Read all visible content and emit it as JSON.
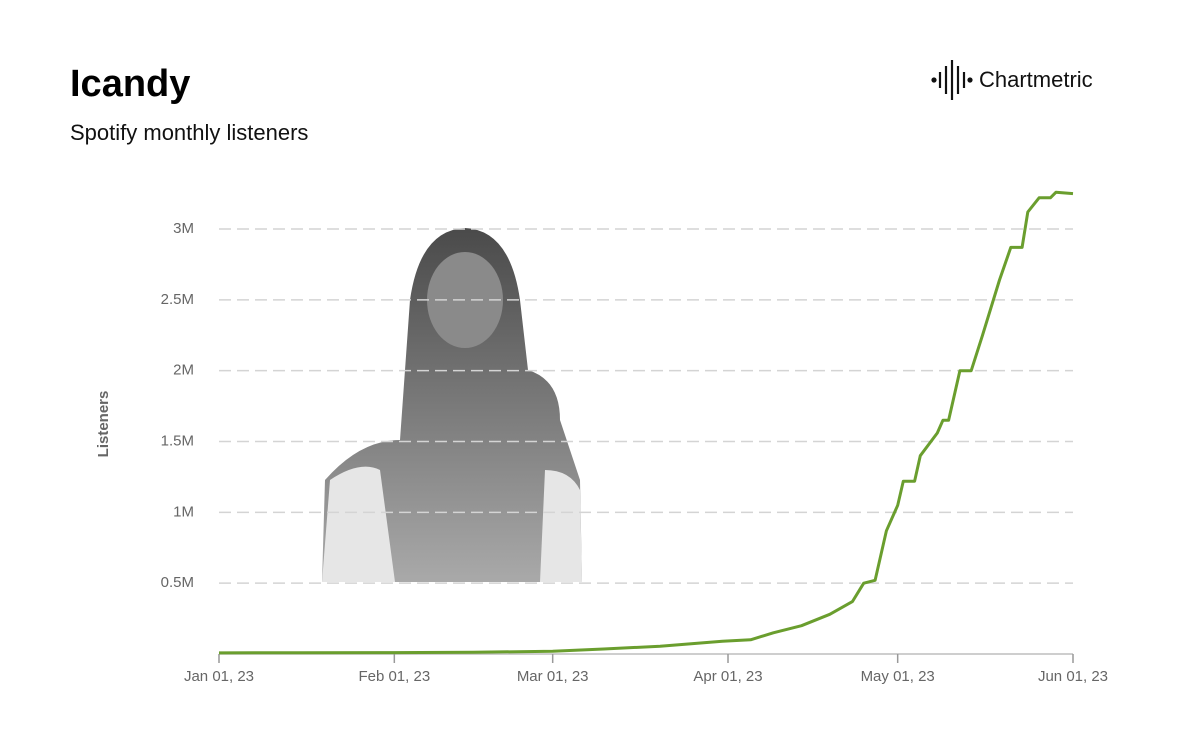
{
  "chart_data": {
    "type": "line",
    "title": "Icandy",
    "subtitle": "Spotify monthly listeners",
    "brand": "Chartmetric",
    "y_label": "Listeners",
    "grid": true,
    "x": [
      "2023-01-01",
      "2023-01-15",
      "2023-02-01",
      "2023-02-15",
      "2023-03-01",
      "2023-03-10",
      "2023-03-20",
      "2023-03-31",
      "2023-04-05",
      "2023-04-09",
      "2023-04-14",
      "2023-04-19",
      "2023-04-23",
      "2023-04-25",
      "2023-04-27",
      "2023-04-29",
      "2023-05-01",
      "2023-05-02",
      "2023-05-04",
      "2023-05-05",
      "2023-05-08",
      "2023-05-09",
      "2023-05-10",
      "2023-05-12",
      "2023-05-14",
      "2023-05-16",
      "2023-05-19",
      "2023-05-21",
      "2023-05-23",
      "2023-05-24",
      "2023-05-26",
      "2023-05-28",
      "2023-05-29",
      "2023-06-01"
    ],
    "series": [
      {
        "name": "Listeners",
        "color": "#6a9e2e",
        "values": [
          8000,
          9000,
          10000,
          12000,
          20000,
          35000,
          55000,
          90000,
          100000,
          150000,
          200000,
          280000,
          370000,
          500000,
          520000,
          870000,
          1050000,
          1220000,
          1220000,
          1400000,
          1560000,
          1650000,
          1650000,
          2000000,
          2000000,
          2250000,
          2640000,
          2870000,
          2870000,
          3120000,
          3220000,
          3220000,
          3260000,
          3250000
        ]
      }
    ],
    "xlim": [
      "2023-01-01",
      "2023-06-01"
    ],
    "xticks": [
      {
        "value": "2023-01-01",
        "label": "Jan 01, 23"
      },
      {
        "value": "2023-02-01",
        "label": "Feb 01, 23"
      },
      {
        "value": "2023-03-01",
        "label": "Mar 01, 23"
      },
      {
        "value": "2023-04-01",
        "label": "Apr 01, 23"
      },
      {
        "value": "2023-05-01",
        "label": "May 01, 23"
      },
      {
        "value": "2023-06-01",
        "label": "Jun 01, 23"
      }
    ],
    "ylim": [
      0,
      3300000
    ],
    "yticks": [
      {
        "value": 500000,
        "label": "0.5M"
      },
      {
        "value": 1000000,
        "label": "1M"
      },
      {
        "value": 1500000,
        "label": "1.5M"
      },
      {
        "value": 2000000,
        "label": "2M"
      },
      {
        "value": 2500000,
        "label": "2.5M"
      },
      {
        "value": 3000000,
        "label": "3M"
      }
    ]
  }
}
